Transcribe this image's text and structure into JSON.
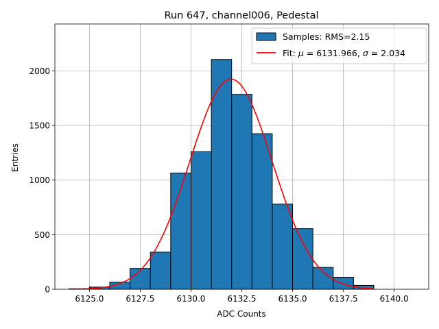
{
  "chart_data": {
    "type": "bar",
    "title": "Run 647, channel006, Pedestal",
    "xlabel": "ADC Counts",
    "ylabel": "Entries",
    "xlim": [
      6123.3,
      6141.7
    ],
    "ylim": [
      0,
      2430
    ],
    "grid": true,
    "legend_position": "top-right",
    "x_ticks": [
      {
        "value": 6125.0,
        "label": "6125.0"
      },
      {
        "value": 6127.5,
        "label": "6127.5"
      },
      {
        "value": 6130.0,
        "label": "6130.0"
      },
      {
        "value": 6132.5,
        "label": "6132.5"
      },
      {
        "value": 6135.0,
        "label": "6135.0"
      },
      {
        "value": 6137.5,
        "label": "6137.5"
      },
      {
        "value": 6140.0,
        "label": "6140.0"
      }
    ],
    "y_ticks": [
      {
        "value": 0,
        "label": "0"
      },
      {
        "value": 500,
        "label": "500"
      },
      {
        "value": 1000,
        "label": "1000"
      },
      {
        "value": 1500,
        "label": "1500"
      },
      {
        "value": 2000,
        "label": "2000"
      }
    ],
    "bin_edges": [
      6124,
      6125,
      6126,
      6127,
      6128,
      6129,
      6130,
      6131,
      6132,
      6133,
      6134,
      6135,
      6136,
      6137,
      6138,
      6139,
      6140
    ],
    "counts": [
      5,
      20,
      65,
      190,
      340,
      1065,
      1260,
      2105,
      1785,
      1425,
      780,
      555,
      200,
      110,
      35,
      0
    ],
    "bar_color": "#1f77b4",
    "bar_edge_color": "#000000",
    "fit": {
      "mu": 6131.966,
      "sigma": 2.034,
      "peak": 1925,
      "x_range": [
        6124,
        6139
      ],
      "color": "#ff0000"
    },
    "series": [
      {
        "name": "Samples: RMS=2.15",
        "kind": "histogram"
      },
      {
        "name_prefix": "Fit: ",
        "name_mu": "μ",
        "name_mid": " = 6131.966, ",
        "name_sigma": "σ",
        "name_suffix": " = 2.034",
        "kind": "line"
      }
    ]
  }
}
